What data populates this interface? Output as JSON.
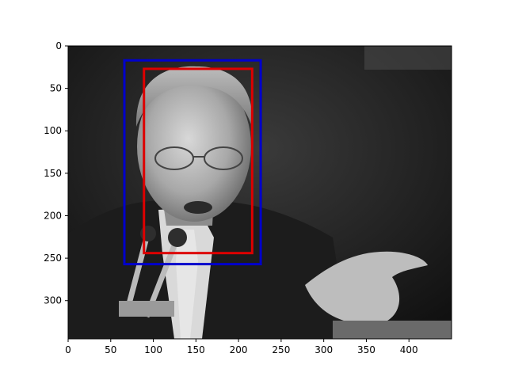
{
  "chart_data": {
    "type": "image",
    "title": "",
    "xlabel": "",
    "ylabel": "",
    "image_description": "grayscale photograph of a man in a suit speaking at microphones, one hand raised",
    "xlim": [
      0,
      450
    ],
    "ylim": [
      345,
      0
    ],
    "x_ticks": [
      0,
      50,
      100,
      150,
      200,
      250,
      300,
      350,
      400
    ],
    "y_ticks": [
      0,
      50,
      100,
      150,
      200,
      250,
      300
    ],
    "boxes": [
      {
        "name": "blue-box",
        "color": "#0000cc",
        "x0": 66,
        "y0": 17,
        "x1": 226,
        "y1": 257
      },
      {
        "name": "red-box",
        "color": "#dd0000",
        "x0": 89,
        "y0": 27,
        "x1": 216,
        "y1": 244
      }
    ]
  }
}
